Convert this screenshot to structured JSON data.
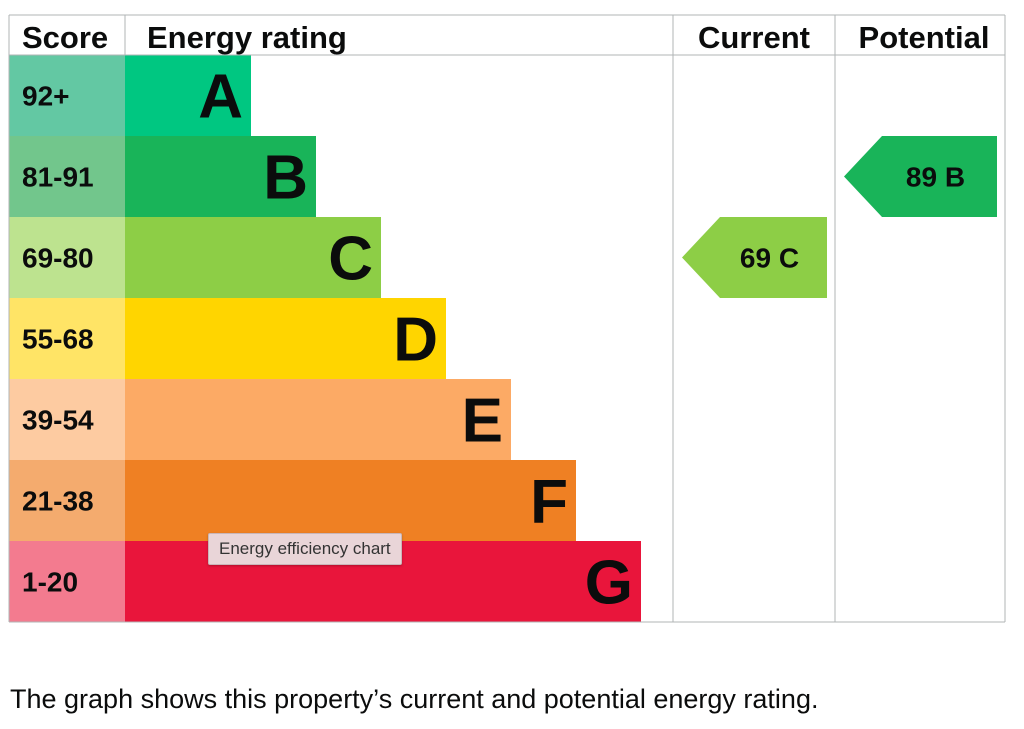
{
  "chart_data": {
    "type": "bar",
    "headers": {
      "score": "Score",
      "energy_rating": "Energy rating",
      "current": "Current",
      "potential": "Potential"
    },
    "bands": [
      {
        "score": "92+",
        "letter": "A",
        "color": "#00c781",
        "score_color": "#63c8a3"
      },
      {
        "score": "81-91",
        "letter": "B",
        "color": "#19b459",
        "score_color": "#72c68c"
      },
      {
        "score": "69-80",
        "letter": "C",
        "color": "#8dce46",
        "score_color": "#bde38f"
      },
      {
        "score": "55-68",
        "letter": "D",
        "color": "#ffd500",
        "score_color": "#ffe466"
      },
      {
        "score": "39-54",
        "letter": "E",
        "color": "#fcaa65",
        "score_color": "#fdcba1"
      },
      {
        "score": "21-38",
        "letter": "F",
        "color": "#ef8023",
        "score_color": "#f4ab6e"
      },
      {
        "score": "1-20",
        "letter": "G",
        "color": "#e9153b",
        "score_color": "#f37b8f"
      }
    ],
    "current": {
      "value": 69,
      "letter": "C",
      "label": "69  C",
      "color": "#8dce46"
    },
    "potential": {
      "value": 89,
      "letter": "B",
      "label": "89  B",
      "color": "#19b459"
    }
  },
  "tooltip": "Energy efficiency chart",
  "caption": "The graph shows this property’s current and potential energy rating."
}
